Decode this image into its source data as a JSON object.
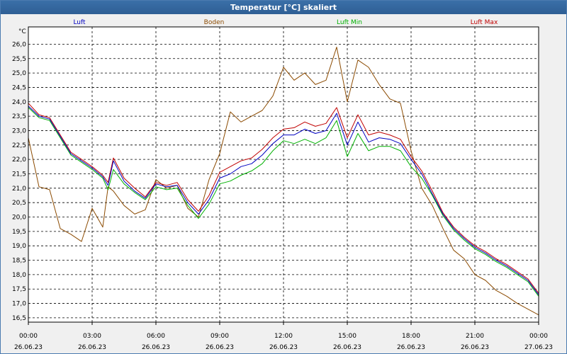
{
  "window": {
    "title": "Temperatur [°C] skaliert"
  },
  "colors": {
    "luft": "#0000c0",
    "boden": "#8b4a00",
    "luft_min": "#00b000",
    "luft_max": "#c00000",
    "plot_bg": "#ffffff",
    "grid": "#000000"
  },
  "chart_data": {
    "type": "line",
    "title": "Temperatur [°C] skaliert",
    "ylabel": "°C",
    "xlabel": "",
    "ylim": [
      16.35,
      26.6
    ],
    "xlim": [
      0,
      24
    ],
    "yticks": [
      16.5,
      17.0,
      17.5,
      18.0,
      18.5,
      19.0,
      19.5,
      20.0,
      20.5,
      21.0,
      21.5,
      22.0,
      22.5,
      23.0,
      23.5,
      24.0,
      24.5,
      25.0,
      25.5,
      26.0
    ],
    "ytick_labels": [
      "16,5",
      "17,0",
      "17,5",
      "18,0",
      "18,5",
      "19,0",
      "19,5",
      "20,0",
      "20,5",
      "21,0",
      "21,5",
      "22,0",
      "22,5",
      "23,0",
      "23,5",
      "24,0",
      "24,5",
      "25,0",
      "25,5",
      "26,0"
    ],
    "xticks": [
      0,
      3,
      6,
      9,
      12,
      15,
      18,
      21,
      24
    ],
    "xtick_times": [
      "00:00",
      "03:00",
      "06:00",
      "09:00",
      "12:00",
      "15:00",
      "18:00",
      "21:00",
      "00:00"
    ],
    "xtick_dates": [
      "26.06.23",
      "26.06.23",
      "26.06.23",
      "26.06.23",
      "26.06.23",
      "26.06.23",
      "26.06.23",
      "26.06.23",
      "27.06.23"
    ],
    "grid": true,
    "legend": "top",
    "x": [
      0,
      0.5,
      1,
      1.5,
      2,
      2.5,
      3,
      3.5,
      3.75,
      4,
      4.5,
      5,
      5.5,
      6,
      6.5,
      7,
      7.5,
      8,
      8.5,
      9,
      9.5,
      10,
      10.5,
      11,
      11.5,
      12,
      12.5,
      13,
      13.5,
      14,
      14.5,
      15,
      15.5,
      16,
      16.5,
      17,
      17.5,
      18,
      18.5,
      19,
      19.5,
      20,
      20.5,
      21,
      21.5,
      22,
      22.5,
      23,
      23.5,
      24
    ],
    "series": [
      {
        "name": "Luft",
        "values": [
          23.85,
          23.5,
          23.4,
          22.8,
          22.2,
          21.95,
          21.7,
          21.4,
          21.1,
          21.95,
          21.25,
          20.9,
          20.65,
          21.15,
          21.05,
          21.1,
          20.5,
          20.1,
          20.6,
          21.35,
          21.5,
          21.75,
          21.85,
          22.15,
          22.55,
          22.85,
          22.85,
          23.05,
          22.9,
          23.0,
          23.6,
          22.5,
          23.3,
          22.6,
          22.75,
          22.7,
          22.55,
          22.0,
          21.5,
          20.8,
          20.1,
          19.6,
          19.25,
          18.95,
          18.75,
          18.5,
          18.3,
          18.05,
          17.8,
          17.3
        ]
      },
      {
        "name": "Boden",
        "values": [
          22.75,
          21.05,
          20.95,
          19.6,
          19.4,
          19.15,
          20.3,
          19.65,
          21.05,
          20.9,
          20.4,
          20.1,
          20.25,
          21.3,
          21.0,
          21.1,
          20.3,
          20.0,
          21.3,
          22.2,
          23.65,
          23.3,
          23.5,
          23.7,
          24.2,
          25.2,
          24.75,
          25.0,
          24.6,
          24.75,
          25.9,
          24.0,
          25.45,
          25.2,
          24.6,
          24.1,
          23.95,
          22.3,
          21.0,
          20.4,
          19.6,
          18.85,
          18.55,
          18.0,
          17.8,
          17.45,
          17.25,
          17.0,
          16.8,
          16.6
        ]
      },
      {
        "name": "Luft Min",
        "values": [
          23.8,
          23.45,
          23.35,
          22.75,
          22.15,
          21.9,
          21.65,
          21.35,
          20.95,
          21.65,
          21.15,
          20.85,
          20.6,
          21.05,
          20.95,
          21.0,
          20.4,
          19.95,
          20.45,
          21.15,
          21.25,
          21.45,
          21.6,
          21.85,
          22.3,
          22.65,
          22.55,
          22.7,
          22.55,
          22.75,
          23.35,
          22.1,
          22.9,
          22.3,
          22.45,
          22.45,
          22.3,
          21.75,
          21.35,
          20.75,
          20.05,
          19.55,
          19.2,
          18.9,
          18.7,
          18.45,
          18.25,
          18.0,
          17.75,
          17.25
        ]
      },
      {
        "name": "Luft Max",
        "values": [
          23.95,
          23.55,
          23.45,
          22.85,
          22.25,
          22.0,
          21.75,
          21.45,
          21.2,
          22.05,
          21.35,
          21.0,
          20.7,
          21.2,
          21.1,
          21.2,
          20.6,
          20.2,
          20.75,
          21.55,
          21.75,
          21.95,
          22.05,
          22.35,
          22.75,
          23.05,
          23.1,
          23.3,
          23.15,
          23.25,
          23.8,
          22.75,
          23.55,
          22.85,
          22.95,
          22.85,
          22.7,
          22.1,
          21.6,
          20.9,
          20.15,
          19.65,
          19.3,
          19.0,
          18.8,
          18.55,
          18.35,
          18.1,
          17.85,
          17.35
        ]
      }
    ]
  }
}
